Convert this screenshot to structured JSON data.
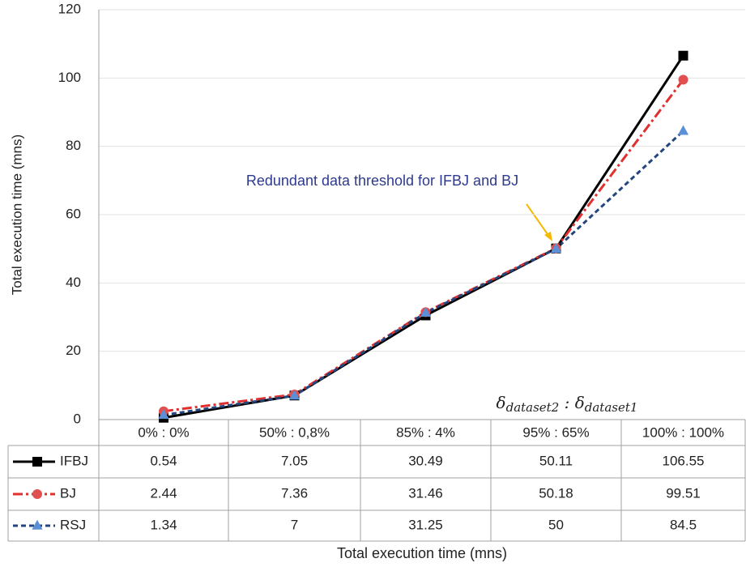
{
  "chart_data": {
    "type": "line",
    "y_label": "Total execution time (mns)",
    "x_label": "Total execution time (mns)",
    "categories": [
      "0% : 0%",
      "50% : 0,8%",
      "85% : 4%",
      "95% : 65%",
      "100% : 100%"
    ],
    "series": [
      {
        "name": "IFBJ",
        "color": "#000000",
        "marker_color": "#000000",
        "marker": "square",
        "dash": "solid",
        "values": [
          0.54,
          7.05,
          30.49,
          50.11,
          106.55
        ]
      },
      {
        "name": "BJ",
        "color": "#e0302f",
        "marker_color": "#e05050",
        "marker": "circle",
        "dash": "dashdot",
        "values": [
          2.44,
          7.36,
          31.46,
          50.18,
          99.51
        ]
      },
      {
        "name": "RSJ",
        "color": "#24467f",
        "marker_color": "#5b8fd6",
        "marker": "triangle",
        "dash": "dashed",
        "values": [
          1.34,
          7,
          31.25,
          50,
          84.5
        ]
      }
    ],
    "ylim": [
      0,
      120
    ],
    "yticks": [
      0,
      20,
      40,
      60,
      80,
      100,
      120
    ],
    "grid": true,
    "annotation": "Redundant data threshold for IFBJ and BJ",
    "delta_label": [
      "δ",
      "dataset2",
      " : ",
      "δ",
      "dataset1"
    ]
  }
}
